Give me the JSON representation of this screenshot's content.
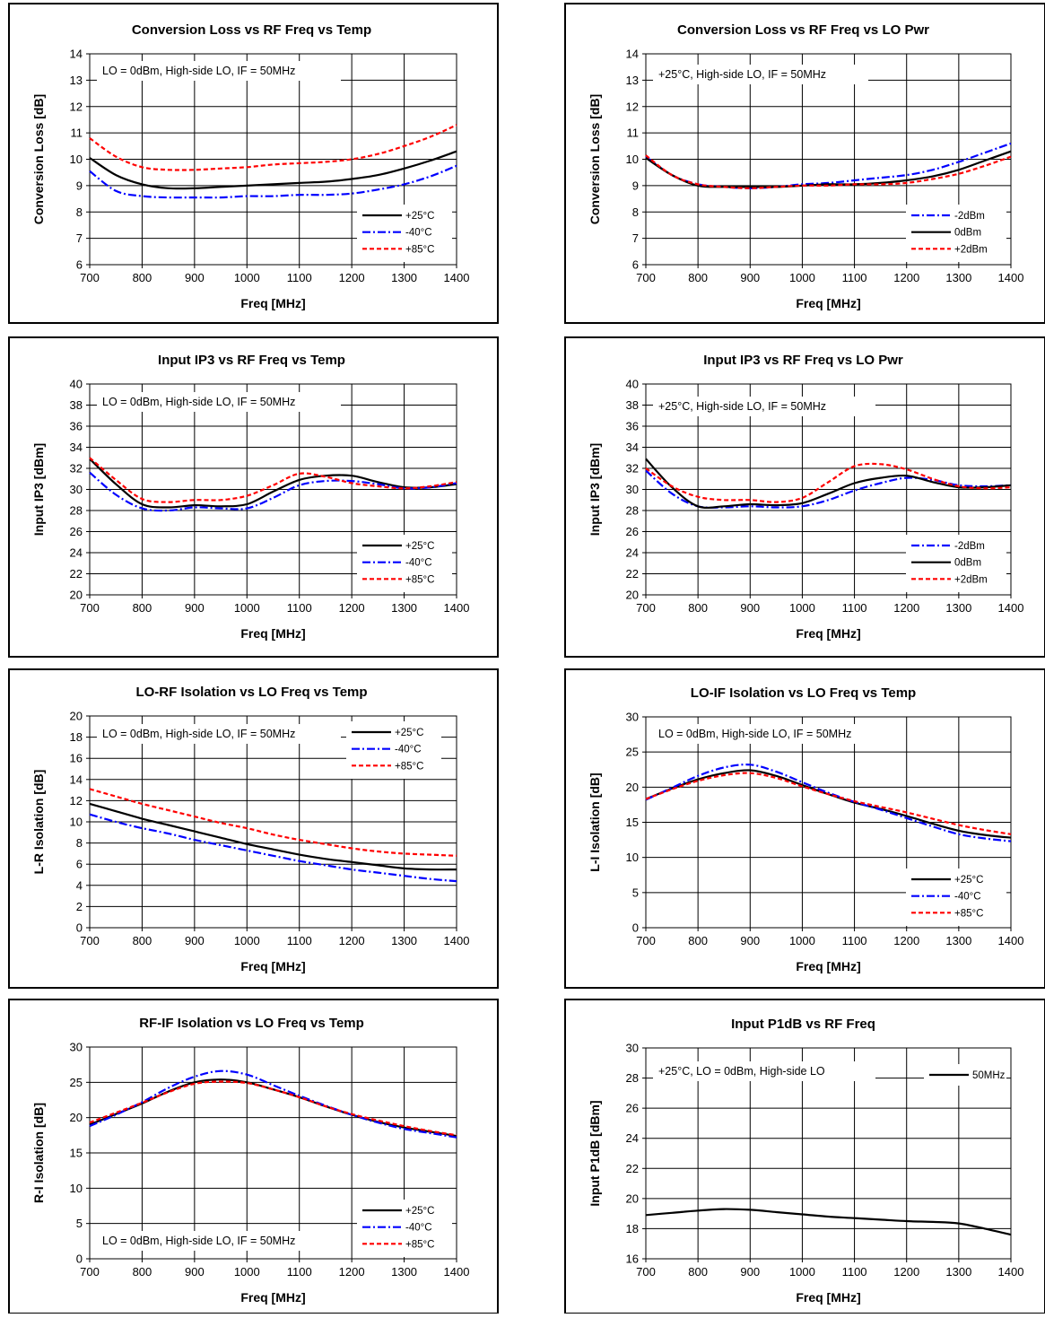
{
  "colors": {
    "black": "#000000",
    "blue": "#0000ff",
    "red": "#ff0000"
  },
  "chart_data": [
    {
      "type": "line",
      "title": "Conversion Loss vs RF Freq vs Temp",
      "annotation": "LO = 0dBm, High-side LO, IF = 50MHz",
      "xlabel": "Freq [MHz]",
      "ylabel": "Conversion  Loss [dB]",
      "xlim": [
        700,
        1400
      ],
      "ylim": [
        6,
        14
      ],
      "xticks": [
        700,
        800,
        900,
        1000,
        1100,
        1200,
        1300,
        1400
      ],
      "yticks": [
        6,
        7,
        8,
        9,
        10,
        11,
        12,
        13,
        14
      ],
      "grid": true,
      "legend": "bottom-right",
      "x": [
        700,
        750,
        800,
        850,
        900,
        950,
        1000,
        1050,
        1100,
        1150,
        1200,
        1250,
        1300,
        1350,
        1400
      ],
      "series": [
        {
          "name": "+25°C",
          "color": "#000000",
          "dash": "solid",
          "values": [
            10.05,
            9.4,
            9.05,
            8.9,
            8.9,
            8.95,
            9.0,
            9.05,
            9.1,
            9.15,
            9.25,
            9.4,
            9.65,
            9.95,
            10.3
          ]
        },
        {
          "name": "-40°C",
          "color": "#0000ff",
          "dash": "dashdot",
          "values": [
            9.55,
            8.8,
            8.6,
            8.55,
            8.55,
            8.55,
            8.6,
            8.6,
            8.65,
            8.65,
            8.7,
            8.85,
            9.05,
            9.35,
            9.75
          ]
        },
        {
          "name": "+85°C",
          "color": "#ff0000",
          "dash": "dash",
          "values": [
            10.8,
            10.1,
            9.7,
            9.6,
            9.6,
            9.65,
            9.7,
            9.8,
            9.85,
            9.9,
            10.0,
            10.2,
            10.5,
            10.85,
            11.3
          ]
        }
      ]
    },
    {
      "type": "line",
      "title": "Conversion Loss vs RF Freq vs LO Pwr",
      "annotation": "+25°C, High-side LO, IF = 50MHz",
      "xlabel": "Freq [MHz]",
      "ylabel": "Conversion  Loss [dB]",
      "xlim": [
        700,
        1400
      ],
      "ylim": [
        6,
        14
      ],
      "xticks": [
        700,
        800,
        900,
        1000,
        1100,
        1200,
        1300,
        1400
      ],
      "yticks": [
        6,
        7,
        8,
        9,
        10,
        11,
        12,
        13,
        14
      ],
      "grid": true,
      "legend": "bottom-right",
      "x": [
        700,
        750,
        800,
        850,
        900,
        950,
        1000,
        1050,
        1100,
        1150,
        1200,
        1250,
        1300,
        1350,
        1400
      ],
      "series": [
        {
          "name": "-2dBm",
          "color": "#0000ff",
          "dash": "dashdot",
          "values": [
            10.1,
            9.4,
            9.05,
            8.95,
            8.9,
            8.95,
            9.05,
            9.1,
            9.2,
            9.3,
            9.4,
            9.6,
            9.9,
            10.25,
            10.6
          ]
        },
        {
          "name": "0dBm",
          "color": "#000000",
          "dash": "solid",
          "values": [
            10.05,
            9.4,
            9.0,
            8.95,
            8.95,
            8.95,
            9.0,
            9.05,
            9.05,
            9.1,
            9.2,
            9.35,
            9.6,
            9.95,
            10.3
          ]
        },
        {
          "name": "+2dBm",
          "color": "#ff0000",
          "dash": "dash",
          "values": [
            10.15,
            9.4,
            9.05,
            8.95,
            8.9,
            8.95,
            9.0,
            9.0,
            9.05,
            9.05,
            9.1,
            9.25,
            9.45,
            9.75,
            10.1
          ]
        }
      ]
    },
    {
      "type": "line",
      "title": "Input IP3 vs RF Freq vs Temp",
      "annotation": "LO = 0dBm, High-side LO, IF = 50MHz",
      "xlabel": "Freq [MHz]",
      "ylabel": "Input IP3 [dBm]",
      "xlim": [
        700,
        1400
      ],
      "ylim": [
        20,
        40
      ],
      "xticks": [
        700,
        800,
        900,
        1000,
        1100,
        1200,
        1300,
        1400
      ],
      "yticks": [
        20,
        22,
        24,
        26,
        28,
        30,
        32,
        34,
        36,
        38,
        40
      ],
      "grid": true,
      "legend": "bottom-right",
      "x": [
        700,
        750,
        800,
        850,
        900,
        950,
        1000,
        1050,
        1100,
        1150,
        1200,
        1250,
        1300,
        1350,
        1400
      ],
      "series": [
        {
          "name": "+25°C",
          "color": "#000000",
          "dash": "solid",
          "values": [
            32.9,
            30.5,
            28.6,
            28.3,
            28.5,
            28.4,
            28.6,
            29.8,
            30.9,
            31.3,
            31.3,
            30.7,
            30.2,
            30.2,
            30.5
          ]
        },
        {
          "name": "-40°C",
          "color": "#0000ff",
          "dash": "dashdot",
          "values": [
            31.6,
            29.5,
            28.2,
            28.0,
            28.3,
            28.2,
            28.2,
            29.2,
            30.4,
            30.8,
            30.8,
            30.5,
            30.1,
            30.2,
            30.6
          ]
        },
        {
          "name": "+85°C",
          "color": "#ff0000",
          "dash": "dash",
          "values": [
            33.0,
            30.9,
            29.1,
            28.8,
            29.0,
            29.0,
            29.4,
            30.4,
            31.5,
            31.2,
            30.6,
            30.3,
            30.1,
            30.3,
            30.7
          ]
        }
      ]
    },
    {
      "type": "line",
      "title": "Input IP3 vs RF Freq vs LO Pwr",
      "annotation": "+25°C, High-side LO,  IF = 50MHz",
      "xlabel": "Freq [MHz]",
      "ylabel": "Input IP3 [dBm]",
      "xlim": [
        700,
        1400
      ],
      "ylim": [
        20,
        40
      ],
      "xticks": [
        700,
        800,
        900,
        1000,
        1100,
        1200,
        1300,
        1400
      ],
      "yticks": [
        20,
        22,
        24,
        26,
        28,
        30,
        32,
        34,
        36,
        38,
        40
      ],
      "grid": true,
      "legend": "bottom-right",
      "x": [
        700,
        750,
        800,
        850,
        900,
        950,
        1000,
        1050,
        1100,
        1150,
        1200,
        1250,
        1300,
        1350,
        1400
      ],
      "series": [
        {
          "name": "-2dBm",
          "color": "#0000ff",
          "dash": "dashdot",
          "values": [
            31.8,
            29.6,
            28.4,
            28.3,
            28.4,
            28.3,
            28.4,
            29.0,
            29.9,
            30.6,
            31.1,
            30.9,
            30.4,
            30.3,
            30.4
          ]
        },
        {
          "name": "0dBm",
          "color": "#000000",
          "dash": "solid",
          "values": [
            32.9,
            30.2,
            28.4,
            28.4,
            28.6,
            28.5,
            28.7,
            29.6,
            30.6,
            31.1,
            31.3,
            30.7,
            30.2,
            30.2,
            30.4
          ]
        },
        {
          "name": "+2dBm",
          "color": "#ff0000",
          "dash": "dash",
          "values": [
            32.0,
            30.3,
            29.3,
            29.0,
            29.0,
            28.8,
            29.2,
            30.7,
            32.2,
            32.4,
            31.9,
            31.0,
            30.3,
            30.1,
            30.2
          ]
        }
      ]
    },
    {
      "type": "line",
      "title": "LO-RF Isolation vs LO Freq vs Temp",
      "annotation": "LO = 0dBm, High-side LO, IF = 50MHz",
      "xlabel": "Freq [MHz]",
      "ylabel": "L-R Isolation [dB]",
      "xlim": [
        700,
        1400
      ],
      "ylim": [
        0,
        20
      ],
      "xticks": [
        700,
        800,
        900,
        1000,
        1100,
        1200,
        1300,
        1400
      ],
      "yticks": [
        0,
        2,
        4,
        6,
        8,
        10,
        12,
        14,
        16,
        18,
        20
      ],
      "grid": true,
      "legend": "top-right",
      "x": [
        700,
        750,
        800,
        850,
        900,
        950,
        1000,
        1050,
        1100,
        1150,
        1200,
        1250,
        1300,
        1350,
        1400
      ],
      "series": [
        {
          "name": "+25°C",
          "color": "#000000",
          "dash": "solid",
          "values": [
            11.7,
            11.0,
            10.3,
            9.7,
            9.1,
            8.5,
            7.9,
            7.4,
            6.9,
            6.5,
            6.2,
            5.9,
            5.6,
            5.5,
            5.5
          ]
        },
        {
          "name": "-40°C",
          "color": "#0000ff",
          "dash": "dashdot",
          "values": [
            10.7,
            10.0,
            9.4,
            8.9,
            8.3,
            7.8,
            7.3,
            6.8,
            6.3,
            5.9,
            5.5,
            5.2,
            4.9,
            4.6,
            4.4
          ]
        },
        {
          "name": "+85°C",
          "color": "#ff0000",
          "dash": "dash",
          "values": [
            13.1,
            12.4,
            11.7,
            11.1,
            10.5,
            9.9,
            9.4,
            8.8,
            8.3,
            7.9,
            7.5,
            7.2,
            7.0,
            6.9,
            6.8
          ]
        }
      ]
    },
    {
      "type": "line",
      "title": "LO-IF Isolation vs LO Freq vs Temp",
      "annotation": "LO = 0dBm, High-side LO, IF = 50MHz",
      "xlabel": "Freq [MHz]",
      "ylabel": "L-I Isolation [dB]",
      "xlim": [
        700,
        1400
      ],
      "ylim": [
        0,
        30
      ],
      "xticks": [
        700,
        800,
        900,
        1000,
        1100,
        1200,
        1300,
        1400
      ],
      "yticks": [
        0,
        5,
        10,
        15,
        20,
        25,
        30
      ],
      "grid": true,
      "legend": "bottom-right",
      "x": [
        700,
        750,
        800,
        850,
        900,
        950,
        1000,
        1050,
        1100,
        1150,
        1200,
        1250,
        1300,
        1350,
        1400
      ],
      "series": [
        {
          "name": "+25°C",
          "color": "#000000",
          "dash": "solid",
          "values": [
            18.3,
            19.8,
            21.1,
            22.0,
            22.4,
            21.6,
            20.3,
            19.0,
            17.8,
            16.9,
            15.9,
            14.8,
            13.8,
            13.2,
            12.8
          ]
        },
        {
          "name": "-40°C",
          "color": "#0000ff",
          "dash": "dashdot",
          "values": [
            18.2,
            19.9,
            21.6,
            22.8,
            23.2,
            22.2,
            20.7,
            19.2,
            17.9,
            16.8,
            15.6,
            14.4,
            13.3,
            12.7,
            12.3
          ]
        },
        {
          "name": "+85°C",
          "color": "#ff0000",
          "dash": "dash",
          "values": [
            18.3,
            19.7,
            20.9,
            21.7,
            22.0,
            21.3,
            20.1,
            19.0,
            18.0,
            17.2,
            16.4,
            15.5,
            14.6,
            13.9,
            13.3
          ]
        }
      ]
    },
    {
      "type": "line",
      "title": "RF-IF Isolation vs LO Freq vs Temp",
      "annotation": "LO = 0dBm, High-side LO, IF = 50MHz",
      "xlabel": "Freq [MHz]",
      "ylabel": "R-I Isolation [dB]",
      "xlim": [
        700,
        1400
      ],
      "ylim": [
        0,
        30
      ],
      "xticks": [
        700,
        800,
        900,
        1000,
        1100,
        1200,
        1300,
        1400
      ],
      "yticks": [
        0,
        5,
        10,
        15,
        20,
        25,
        30
      ],
      "grid": true,
      "legend": "bottom-right",
      "x": [
        700,
        750,
        800,
        850,
        900,
        950,
        1000,
        1050,
        1100,
        1150,
        1200,
        1250,
        1300,
        1350,
        1400
      ],
      "series": [
        {
          "name": "+25°C",
          "color": "#000000",
          "dash": "solid",
          "values": [
            19.0,
            20.5,
            22.0,
            23.7,
            25.0,
            25.4,
            25.0,
            24.0,
            22.9,
            21.6,
            20.4,
            19.4,
            18.6,
            18.0,
            17.4
          ]
        },
        {
          "name": "-40°C",
          "color": "#0000ff",
          "dash": "dashdot",
          "values": [
            18.8,
            20.4,
            22.2,
            24.2,
            25.8,
            26.6,
            26.1,
            24.6,
            23.1,
            21.7,
            20.4,
            19.3,
            18.4,
            17.8,
            17.2
          ]
        },
        {
          "name": "+85°C",
          "color": "#ff0000",
          "dash": "dash",
          "values": [
            19.3,
            20.7,
            22.1,
            23.6,
            24.8,
            25.1,
            24.9,
            24.0,
            22.9,
            21.6,
            20.5,
            19.6,
            18.8,
            18.1,
            17.5
          ]
        }
      ]
    },
    {
      "type": "line",
      "title": "Input P1dB vs RF Freq",
      "annotation": "+25°C, LO = 0dBm, High-side LO",
      "xlabel": "Freq [MHz]",
      "ylabel": "Input P1dB [dBm]",
      "xlim": [
        700,
        1400
      ],
      "ylim": [
        16,
        30
      ],
      "xticks": [
        700,
        800,
        900,
        1000,
        1100,
        1200,
        1300,
        1400
      ],
      "yticks": [
        16,
        18,
        20,
        22,
        24,
        26,
        28,
        30
      ],
      "grid": true,
      "legend": "top-right",
      "x": [
        700,
        750,
        800,
        850,
        900,
        950,
        1000,
        1050,
        1100,
        1150,
        1200,
        1250,
        1300,
        1350,
        1400
      ],
      "series": [
        {
          "name": "50MHz",
          "color": "#000000",
          "dash": "solid",
          "values": [
            18.9,
            19.05,
            19.2,
            19.3,
            19.25,
            19.1,
            18.95,
            18.8,
            18.7,
            18.6,
            18.5,
            18.45,
            18.35,
            18.0,
            17.6
          ]
        }
      ]
    }
  ]
}
